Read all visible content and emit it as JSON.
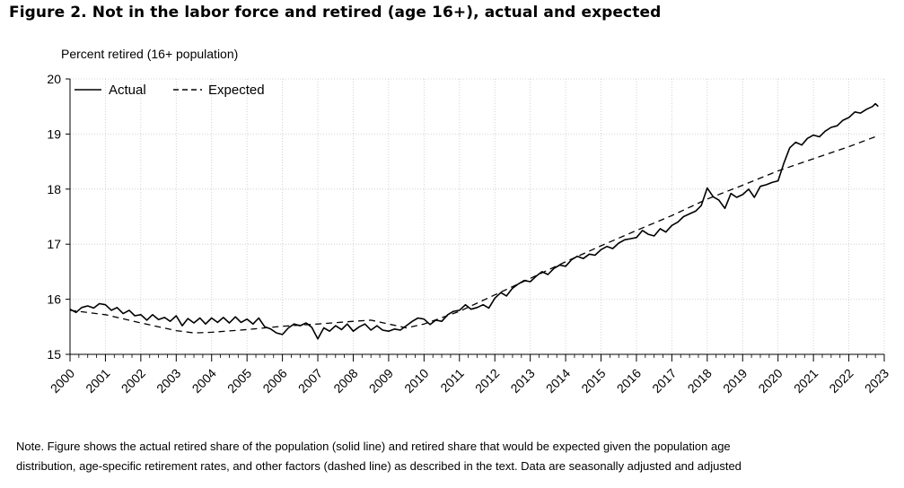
{
  "figure": {
    "title": "Figure 2.  Not in the labor force and retired (age 16+), actual and expected",
    "note_line1": "Note. Figure shows the actual retired share of the population (solid line) and retired share that would be expected given the population age",
    "note_line2": "distribution, age-specific retirement rates, and other factors (dashed line) as described in the text.  Data are seasonally adjusted and adjusted"
  },
  "chart_data": {
    "type": "line",
    "title": "",
    "ylabel": "Percent retired (16+ population)",
    "xlabel": "",
    "ylim": [
      15,
      20
    ],
    "xlim": [
      2000,
      2023
    ],
    "yticks": [
      "15",
      "16",
      "17",
      "18",
      "19",
      "20"
    ],
    "xticks": [
      "2000",
      "2001",
      "2002",
      "2003",
      "2004",
      "2005",
      "2006",
      "2007",
      "2008",
      "2009",
      "2010",
      "2011",
      "2012",
      "2013",
      "2014",
      "2015",
      "2016",
      "2017",
      "2018",
      "2019",
      "2020",
      "2021",
      "2022",
      "2023"
    ],
    "grid": true,
    "legend_position": "top-left",
    "series": [
      {
        "name": "Actual",
        "style": "solid",
        "color": "#000000",
        "points": [
          [
            2000.0,
            15.82
          ],
          [
            2000.17,
            15.76
          ],
          [
            2000.33,
            15.85
          ],
          [
            2000.5,
            15.88
          ],
          [
            2000.67,
            15.84
          ],
          [
            2000.83,
            15.92
          ],
          [
            2001.0,
            15.9
          ],
          [
            2001.17,
            15.8
          ],
          [
            2001.33,
            15.85
          ],
          [
            2001.5,
            15.74
          ],
          [
            2001.67,
            15.8
          ],
          [
            2001.83,
            15.7
          ],
          [
            2002.0,
            15.72
          ],
          [
            2002.17,
            15.62
          ],
          [
            2002.33,
            15.72
          ],
          [
            2002.5,
            15.63
          ],
          [
            2002.67,
            15.67
          ],
          [
            2002.83,
            15.6
          ],
          [
            2003.0,
            15.7
          ],
          [
            2003.17,
            15.52
          ],
          [
            2003.33,
            15.65
          ],
          [
            2003.5,
            15.57
          ],
          [
            2003.67,
            15.66
          ],
          [
            2003.83,
            15.55
          ],
          [
            2004.0,
            15.66
          ],
          [
            2004.17,
            15.58
          ],
          [
            2004.33,
            15.67
          ],
          [
            2004.5,
            15.57
          ],
          [
            2004.67,
            15.68
          ],
          [
            2004.83,
            15.58
          ],
          [
            2005.0,
            15.64
          ],
          [
            2005.17,
            15.55
          ],
          [
            2005.33,
            15.66
          ],
          [
            2005.5,
            15.5
          ],
          [
            2005.67,
            15.46
          ],
          [
            2005.83,
            15.39
          ],
          [
            2006.0,
            15.36
          ],
          [
            2006.17,
            15.48
          ],
          [
            2006.33,
            15.55
          ],
          [
            2006.5,
            15.52
          ],
          [
            2006.67,
            15.57
          ],
          [
            2006.83,
            15.49
          ],
          [
            2007.0,
            15.28
          ],
          [
            2007.17,
            15.48
          ],
          [
            2007.33,
            15.42
          ],
          [
            2007.5,
            15.52
          ],
          [
            2007.67,
            15.45
          ],
          [
            2007.83,
            15.55
          ],
          [
            2008.0,
            15.42
          ],
          [
            2008.17,
            15.5
          ],
          [
            2008.33,
            15.55
          ],
          [
            2008.5,
            15.44
          ],
          [
            2008.67,
            15.52
          ],
          [
            2008.83,
            15.44
          ],
          [
            2009.0,
            15.42
          ],
          [
            2009.17,
            15.46
          ],
          [
            2009.33,
            15.44
          ],
          [
            2009.5,
            15.52
          ],
          [
            2009.67,
            15.6
          ],
          [
            2009.83,
            15.66
          ],
          [
            2010.0,
            15.64
          ],
          [
            2010.17,
            15.54
          ],
          [
            2010.33,
            15.62
          ],
          [
            2010.5,
            15.6
          ],
          [
            2010.67,
            15.72
          ],
          [
            2010.83,
            15.78
          ],
          [
            2011.0,
            15.8
          ],
          [
            2011.17,
            15.9
          ],
          [
            2011.33,
            15.82
          ],
          [
            2011.5,
            15.85
          ],
          [
            2011.67,
            15.9
          ],
          [
            2011.83,
            15.84
          ],
          [
            2012.0,
            16.02
          ],
          [
            2012.17,
            16.12
          ],
          [
            2012.33,
            16.06
          ],
          [
            2012.5,
            16.2
          ],
          [
            2012.67,
            16.28
          ],
          [
            2012.83,
            16.34
          ],
          [
            2013.0,
            16.32
          ],
          [
            2013.17,
            16.42
          ],
          [
            2013.33,
            16.5
          ],
          [
            2013.5,
            16.45
          ],
          [
            2013.67,
            16.56
          ],
          [
            2013.83,
            16.62
          ],
          [
            2014.0,
            16.6
          ],
          [
            2014.17,
            16.72
          ],
          [
            2014.33,
            16.78
          ],
          [
            2014.5,
            16.74
          ],
          [
            2014.67,
            16.82
          ],
          [
            2014.83,
            16.8
          ],
          [
            2015.0,
            16.9
          ],
          [
            2015.17,
            16.96
          ],
          [
            2015.33,
            16.92
          ],
          [
            2015.5,
            17.02
          ],
          [
            2015.67,
            17.08
          ],
          [
            2015.83,
            17.1
          ],
          [
            2016.0,
            17.12
          ],
          [
            2016.17,
            17.25
          ],
          [
            2016.33,
            17.18
          ],
          [
            2016.5,
            17.15
          ],
          [
            2016.67,
            17.28
          ],
          [
            2016.83,
            17.22
          ],
          [
            2017.0,
            17.34
          ],
          [
            2017.17,
            17.4
          ],
          [
            2017.33,
            17.5
          ],
          [
            2017.5,
            17.55
          ],
          [
            2017.67,
            17.6
          ],
          [
            2017.83,
            17.7
          ],
          [
            2018.0,
            18.02
          ],
          [
            2018.17,
            17.86
          ],
          [
            2018.33,
            17.8
          ],
          [
            2018.5,
            17.65
          ],
          [
            2018.67,
            17.92
          ],
          [
            2018.83,
            17.85
          ],
          [
            2019.0,
            17.9
          ],
          [
            2019.17,
            18.0
          ],
          [
            2019.33,
            17.85
          ],
          [
            2019.5,
            18.05
          ],
          [
            2019.67,
            18.08
          ],
          [
            2019.83,
            18.12
          ],
          [
            2020.0,
            18.15
          ],
          [
            2020.17,
            18.48
          ],
          [
            2020.33,
            18.75
          ],
          [
            2020.5,
            18.85
          ],
          [
            2020.67,
            18.8
          ],
          [
            2020.83,
            18.92
          ],
          [
            2021.0,
            18.98
          ],
          [
            2021.17,
            18.95
          ],
          [
            2021.33,
            19.05
          ],
          [
            2021.5,
            19.12
          ],
          [
            2021.67,
            19.15
          ],
          [
            2021.83,
            19.25
          ],
          [
            2022.0,
            19.3
          ],
          [
            2022.17,
            19.4
          ],
          [
            2022.33,
            19.38
          ],
          [
            2022.5,
            19.45
          ],
          [
            2022.67,
            19.5
          ],
          [
            2022.75,
            19.55
          ],
          [
            2022.83,
            19.5
          ]
        ]
      },
      {
        "name": "Expected",
        "style": "dashed",
        "color": "#000000",
        "points": [
          [
            2000.0,
            15.8
          ],
          [
            2001.0,
            15.72
          ],
          [
            2002.0,
            15.57
          ],
          [
            2003.0,
            15.43
          ],
          [
            2003.5,
            15.39
          ],
          [
            2004.0,
            15.4
          ],
          [
            2005.0,
            15.45
          ],
          [
            2006.0,
            15.51
          ],
          [
            2007.0,
            15.55
          ],
          [
            2008.0,
            15.6
          ],
          [
            2008.5,
            15.62
          ],
          [
            2009.0,
            15.55
          ],
          [
            2009.5,
            15.48
          ],
          [
            2010.0,
            15.55
          ],
          [
            2011.0,
            15.78
          ],
          [
            2012.0,
            16.08
          ],
          [
            2013.0,
            16.38
          ],
          [
            2014.0,
            16.68
          ],
          [
            2015.0,
            16.97
          ],
          [
            2016.0,
            17.25
          ],
          [
            2017.0,
            17.52
          ],
          [
            2018.0,
            17.82
          ],
          [
            2019.0,
            18.07
          ],
          [
            2020.0,
            18.33
          ],
          [
            2021.0,
            18.55
          ],
          [
            2022.0,
            18.77
          ],
          [
            2022.83,
            18.97
          ]
        ]
      }
    ]
  }
}
